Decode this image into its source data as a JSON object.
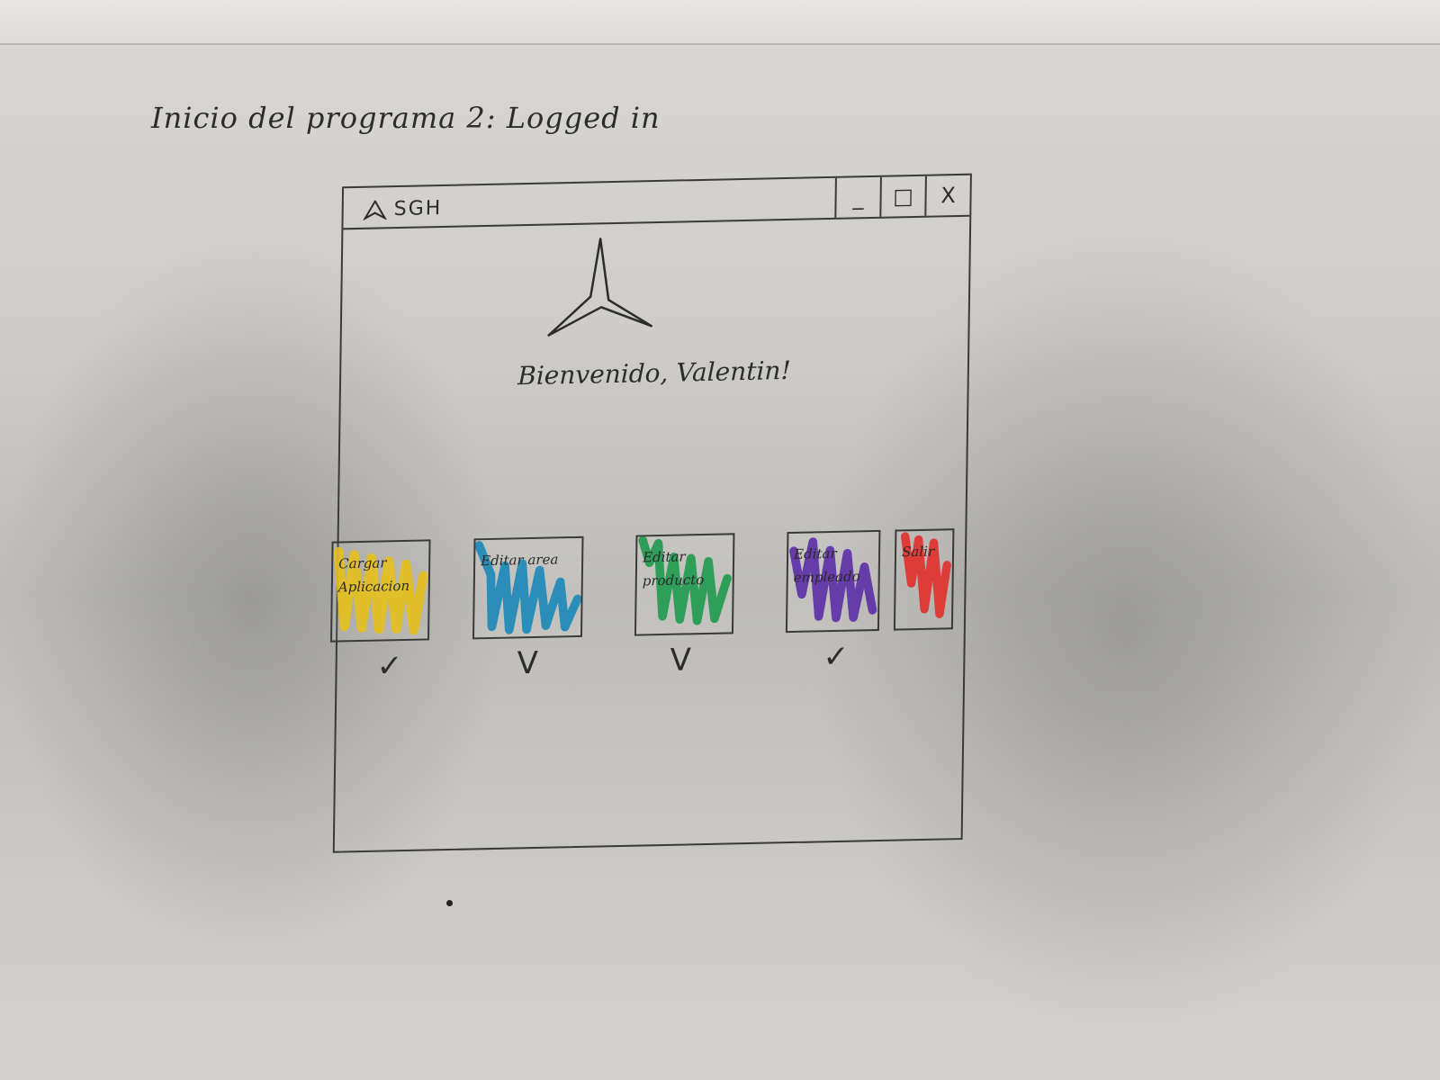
{
  "page": {
    "heading": "Inicio del programa 2: Logged in"
  },
  "window": {
    "title": "SGH",
    "controls": {
      "minimize": "_",
      "maximize": "□",
      "close": "X"
    }
  },
  "main": {
    "welcome": "Bienvenido, Valentin!"
  },
  "tiles": [
    {
      "label": "Cargar Aplicacion",
      "color": "#e6c01c"
    },
    {
      "label": "Editar area",
      "color": "#1b88b8"
    },
    {
      "label": "Editar producto",
      "color": "#1f9a4e"
    },
    {
      "label": "Editar empleado",
      "color": "#5b2ea6"
    },
    {
      "label": "Salir",
      "color": "#e0302a"
    }
  ],
  "checks": [
    "✓",
    "V",
    "V",
    "✓"
  ]
}
